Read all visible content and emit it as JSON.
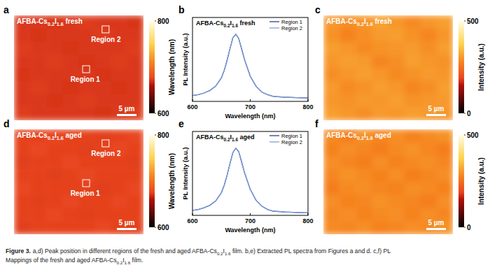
{
  "chart_data": [
    {
      "type": "heatmap",
      "panel": "a",
      "title": "AFBA-Cs0.2I1.6 fresh",
      "annotations": [
        "Region 1",
        "Region 2"
      ],
      "scale_bar": "5 µm",
      "colorbar": {
        "label": "Wavelength (nm)",
        "range": [
          600,
          800
        ],
        "ticks": [
          600,
          800
        ]
      },
      "cells": [
        [
          672,
          672,
          671,
          672,
          673,
          672,
          672,
          671
        ],
        [
          672,
          671,
          672,
          672,
          672,
          673,
          672,
          672
        ],
        [
          673,
          672,
          672,
          671,
          672,
          672,
          672,
          673
        ],
        [
          672,
          672,
          673,
          672,
          671,
          672,
          673,
          672
        ],
        [
          671,
          672,
          672,
          672,
          672,
          671,
          672,
          672
        ],
        [
          672,
          673,
          672,
          671,
          672,
          672,
          671,
          672
        ],
        [
          672,
          672,
          671,
          672,
          673,
          672,
          672,
          672
        ],
        [
          673,
          672,
          672,
          672,
          672,
          671,
          672,
          673
        ]
      ]
    },
    {
      "type": "line",
      "panel": "b",
      "title": "AFBA-Cs0.2I1.6 fresh",
      "xlabel": "Wavelength (nm)",
      "ylabel": "PL Intensity (a.u.)",
      "x": [
        600,
        610,
        620,
        630,
        640,
        650,
        655,
        660,
        665,
        670,
        675,
        680,
        685,
        690,
        700,
        710,
        720,
        730,
        740,
        760,
        780,
        800
      ],
      "series": [
        {
          "name": "Region 1",
          "color": "#2f3f8f",
          "values": [
            0.07,
            0.08,
            0.1,
            0.13,
            0.18,
            0.28,
            0.37,
            0.49,
            0.63,
            0.76,
            0.8,
            0.75,
            0.63,
            0.5,
            0.3,
            0.18,
            0.11,
            0.08,
            0.06,
            0.05,
            0.045,
            0.04
          ]
        },
        {
          "name": "Region 2",
          "color": "#7f9fd8",
          "values": [
            0.07,
            0.08,
            0.1,
            0.13,
            0.18,
            0.28,
            0.37,
            0.5,
            0.63,
            0.76,
            0.8,
            0.75,
            0.62,
            0.5,
            0.3,
            0.18,
            0.11,
            0.08,
            0.06,
            0.05,
            0.045,
            0.04
          ]
        }
      ],
      "xlim": [
        600,
        800
      ],
      "xticks": [
        600,
        700,
        800
      ],
      "ylim": [
        0,
        1
      ],
      "tick_labels": "x",
      "legend": "top-right"
    },
    {
      "type": "heatmap",
      "panel": "c",
      "title": "AFBA-Cs0.2I1.6 fresh",
      "scale_bar": "5 µm",
      "colorbar": {
        "label": "Intensity (a.u.)",
        "range": [
          0,
          500
        ],
        "ticks": [
          0,
          500
        ]
      },
      "cells": [
        [
          305,
          290,
          300,
          315,
          300,
          285,
          300,
          310
        ],
        [
          295,
          275,
          290,
          305,
          310,
          295,
          280,
          300
        ],
        [
          310,
          300,
          285,
          295,
          300,
          305,
          290,
          310
        ],
        [
          300,
          310,
          305,
          280,
          290,
          310,
          300,
          295
        ],
        [
          290,
          300,
          310,
          300,
          285,
          295,
          305,
          300
        ],
        [
          305,
          285,
          295,
          310,
          300,
          280,
          290,
          310
        ],
        [
          300,
          295,
          305,
          300,
          310,
          295,
          300,
          305
        ],
        [
          310,
          300,
          290,
          305,
          300,
          310,
          305,
          300
        ]
      ]
    },
    {
      "type": "heatmap",
      "panel": "d",
      "title": "AFBA-Cs0.2I1.6 aged",
      "annotations": [
        "Region 1",
        "Region 2"
      ],
      "scale_bar": "5 µm",
      "colorbar": {
        "label": "Wavelength (nm)",
        "range": [
          600,
          800
        ],
        "ticks": [
          600,
          800
        ]
      },
      "cells": [
        [
          675,
          675,
          676,
          675,
          675,
          674,
          675,
          676
        ],
        [
          675,
          676,
          675,
          675,
          674,
          675,
          676,
          675
        ],
        [
          674,
          675,
          675,
          676,
          675,
          675,
          675,
          674
        ],
        [
          675,
          675,
          674,
          675,
          676,
          675,
          675,
          675
        ],
        [
          676,
          675,
          675,
          675,
          675,
          674,
          675,
          676
        ],
        [
          675,
          674,
          675,
          676,
          675,
          675,
          676,
          675
        ],
        [
          675,
          675,
          676,
          675,
          674,
          675,
          675,
          675
        ],
        [
          674,
          675,
          675,
          675,
          675,
          676,
          675,
          674
        ]
      ]
    },
    {
      "type": "line",
      "panel": "e",
      "title": "AFBA-Cs0.2I1.6 aged",
      "xlabel": "Wavelength (nm)",
      "ylabel": "PL Intensity (a.u.)",
      "x": [
        600,
        610,
        620,
        630,
        640,
        650,
        655,
        660,
        665,
        670,
        675,
        680,
        685,
        690,
        700,
        710,
        720,
        730,
        740,
        760,
        780,
        800
      ],
      "series": [
        {
          "name": "Region 1",
          "color": "#2f3f8f",
          "values": [
            0.06,
            0.07,
            0.09,
            0.12,
            0.17,
            0.27,
            0.36,
            0.48,
            0.62,
            0.75,
            0.8,
            0.76,
            0.64,
            0.51,
            0.31,
            0.18,
            0.11,
            0.07,
            0.05,
            0.04,
            0.035,
            0.03
          ]
        },
        {
          "name": "Region 2",
          "color": "#7f9fd8",
          "values": [
            0.06,
            0.07,
            0.09,
            0.12,
            0.17,
            0.27,
            0.36,
            0.48,
            0.62,
            0.75,
            0.8,
            0.76,
            0.63,
            0.51,
            0.31,
            0.18,
            0.11,
            0.07,
            0.05,
            0.04,
            0.035,
            0.03
          ]
        }
      ],
      "xlim": [
        600,
        800
      ],
      "xticks": [
        600,
        700,
        800
      ],
      "ylim": [
        0,
        1
      ],
      "tick_labels": "x",
      "legend": "top-right"
    },
    {
      "type": "heatmap",
      "panel": "f",
      "title": "AFBA-Cs0.2I1.6 aged",
      "scale_bar": "5 µm",
      "colorbar": {
        "label": "Intensity (a.u.)",
        "range": [
          0,
          500
        ],
        "ticks": [
          0,
          500
        ]
      },
      "cells": [
        [
          285,
          270,
          295,
          280,
          290,
          275,
          285,
          295
        ],
        [
          275,
          290,
          280,
          270,
          285,
          295,
          280,
          270
        ],
        [
          290,
          280,
          270,
          290,
          275,
          285,
          290,
          280
        ],
        [
          280,
          295,
          285,
          275,
          290,
          270,
          280,
          290
        ],
        [
          270,
          285,
          290,
          280,
          275,
          290,
          285,
          275
        ],
        [
          290,
          275,
          280,
          295,
          285,
          280,
          270,
          290
        ],
        [
          280,
          290,
          275,
          285,
          290,
          275,
          290,
          280
        ],
        [
          285,
          280,
          290,
          275,
          280,
          290,
          285,
          295
        ]
      ]
    }
  ],
  "caption": {
    "label": "Figure 3.",
    "lines": [
      "a,d) Peak position in different regions of the fresh and aged AFBA-Cs0.2I1.6 film. b,e) Extracted PL spectra from Figures a and d. c,f) PL",
      "Mappings of the fresh and aged AFBA-Cs0.2I1.6 film."
    ]
  }
}
